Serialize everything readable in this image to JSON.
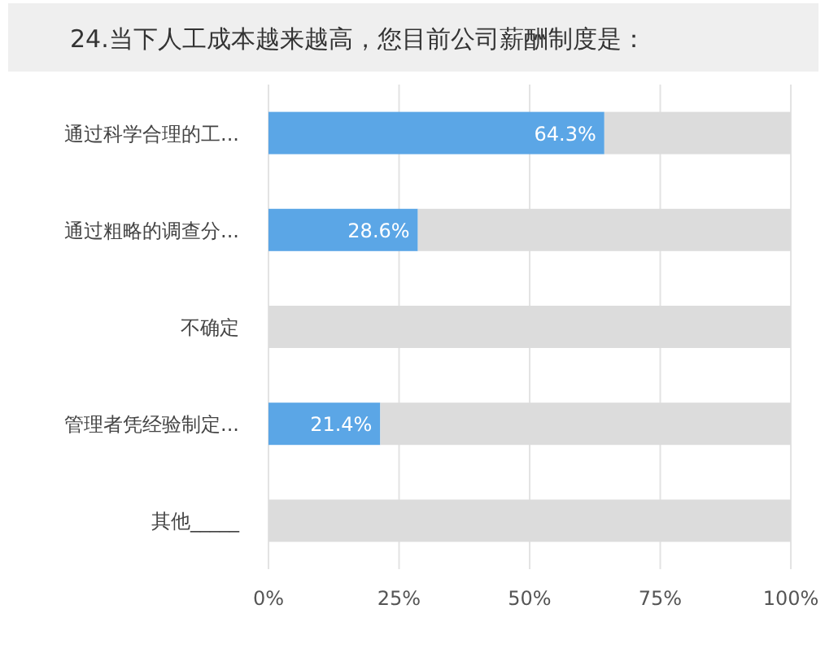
{
  "chart_data": {
    "type": "bar",
    "orientation": "horizontal",
    "stacked": true,
    "title": "24.当下人工成本越来越高，您目前公司薪酬制度是：",
    "categories": [
      "通过科学合理的工...",
      "通过粗略的调查分...",
      "不确定",
      "管理者凭经验制定...",
      "其他_____"
    ],
    "series": [
      {
        "color": "#5ba6e6",
        "values": [
          64.3,
          28.6,
          0,
          21.4,
          0
        ],
        "value_labels": [
          "64.3%",
          "28.6%",
          null,
          "21.4%",
          null
        ]
      },
      {
        "color": "#dcdcdc",
        "values": [
          35.7,
          71.4,
          100,
          78.6,
          100
        ]
      }
    ],
    "xlim": [
      0,
      100
    ],
    "xticks": [
      {
        "value": 0,
        "label": "0%"
      },
      {
        "value": 25,
        "label": "25%"
      },
      {
        "value": 50,
        "label": "50%"
      },
      {
        "value": 75,
        "label": "75%"
      },
      {
        "value": 100,
        "label": "100%"
      }
    ],
    "grid": "x"
  }
}
